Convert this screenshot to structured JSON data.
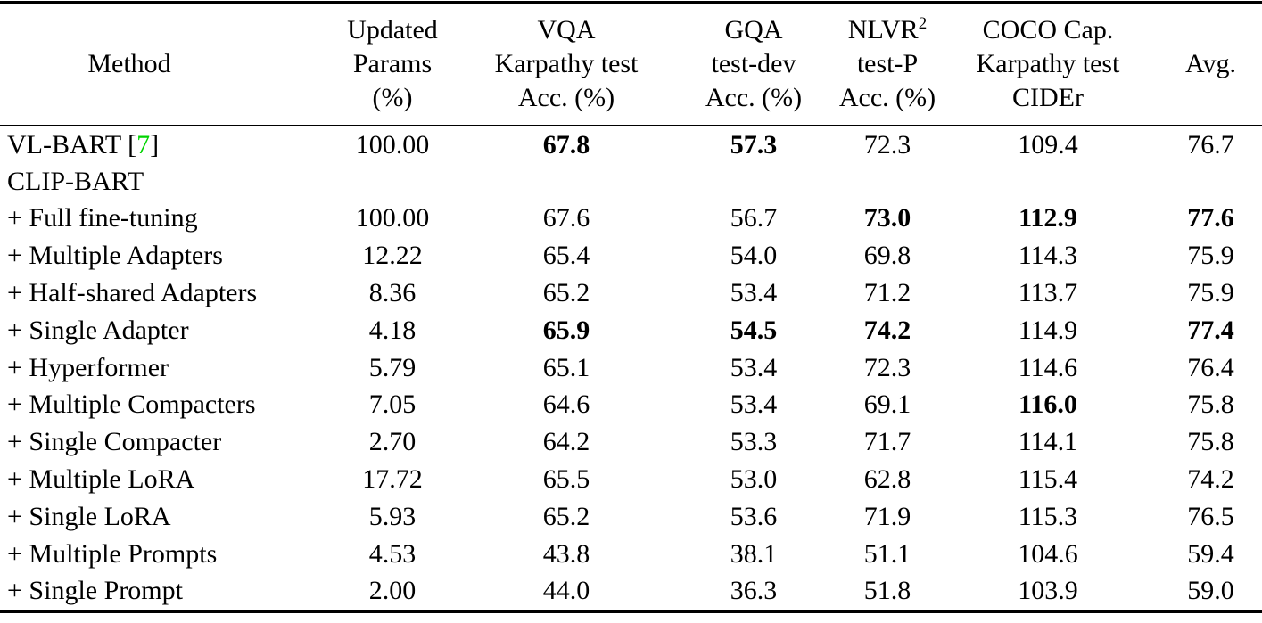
{
  "accent_colors": {
    "citation_green": "#00D400",
    "text": "#000000"
  },
  "table": {
    "columns": [
      {
        "id": "method",
        "header_lines": [
          "Method"
        ]
      },
      {
        "id": "updated-params",
        "header_lines": [
          "Updated",
          "Params",
          "(%)"
        ]
      },
      {
        "id": "vqa",
        "header_lines": [
          "VQA",
          "Karpathy test",
          "Acc. (%)"
        ]
      },
      {
        "id": "gqa",
        "header_lines": [
          "GQA",
          "test-dev",
          "Acc. (%)"
        ]
      },
      {
        "id": "nlvr2",
        "header_lines": [
          {
            "text": "NLVR",
            "sup": "2"
          },
          "test-P",
          "Acc. (%)"
        ]
      },
      {
        "id": "coco-cap",
        "header_lines": [
          "COCO Cap.",
          "Karpathy test",
          "CIDEr"
        ]
      },
      {
        "id": "avg",
        "header_lines": [
          "Avg."
        ]
      }
    ],
    "rows": [
      {
        "method": {
          "pre": "VL-BART [",
          "cite": "7",
          "post": "]"
        },
        "values": [
          "100.00",
          "67.8",
          "57.3",
          "72.3",
          "109.4",
          "76.7"
        ],
        "bold": [
          false,
          true,
          true,
          false,
          false,
          false
        ]
      },
      {
        "method": "CLIP-BART",
        "values": [
          "",
          "",
          "",
          "",
          "",
          ""
        ],
        "bold": [
          false,
          false,
          false,
          false,
          false,
          false
        ]
      },
      {
        "method": "+ Full fine-tuning",
        "values": [
          "100.00",
          "67.6",
          "56.7",
          "73.0",
          "112.9",
          "77.6"
        ],
        "bold": [
          false,
          false,
          false,
          true,
          true,
          true
        ]
      },
      {
        "method": "+ Multiple Adapters",
        "values": [
          "12.22",
          "65.4",
          "54.0",
          "69.8",
          "114.3",
          "75.9"
        ],
        "bold": [
          false,
          false,
          false,
          false,
          false,
          false
        ]
      },
      {
        "method": "+ Half-shared Adapters",
        "values": [
          "8.36",
          "65.2",
          "53.4",
          "71.2",
          "113.7",
          "75.9"
        ],
        "bold": [
          false,
          false,
          false,
          false,
          false,
          false
        ]
      },
      {
        "method": "+ Single Adapter",
        "values": [
          "4.18",
          "65.9",
          "54.5",
          "74.2",
          "114.9",
          "77.4"
        ],
        "bold": [
          false,
          true,
          true,
          true,
          false,
          true
        ]
      },
      {
        "method": "+ Hyperformer",
        "values": [
          "5.79",
          "65.1",
          "53.4",
          "72.3",
          "114.6",
          "76.4"
        ],
        "bold": [
          false,
          false,
          false,
          false,
          false,
          false
        ]
      },
      {
        "method": "+ Multiple Compacters",
        "values": [
          "7.05",
          "64.6",
          "53.4",
          "69.1",
          "116.0",
          "75.8"
        ],
        "bold": [
          false,
          false,
          false,
          false,
          true,
          false
        ]
      },
      {
        "method": "+ Single Compacter",
        "values": [
          "2.70",
          "64.2",
          "53.3",
          "71.7",
          "114.1",
          "75.8"
        ],
        "bold": [
          false,
          false,
          false,
          false,
          false,
          false
        ]
      },
      {
        "method": "+ Multiple LoRA",
        "values": [
          "17.72",
          "65.5",
          "53.0",
          "62.8",
          "115.4",
          "74.2"
        ],
        "bold": [
          false,
          false,
          false,
          false,
          false,
          false
        ]
      },
      {
        "method": "+ Single LoRA",
        "values": [
          "5.93",
          "65.2",
          "53.6",
          "71.9",
          "115.3",
          "76.5"
        ],
        "bold": [
          false,
          false,
          false,
          false,
          false,
          false
        ]
      },
      {
        "method": "+ Multiple Prompts",
        "values": [
          "4.53",
          "43.8",
          "38.1",
          "51.1",
          "104.6",
          "59.4"
        ],
        "bold": [
          false,
          false,
          false,
          false,
          false,
          false
        ]
      },
      {
        "method": "+ Single Prompt",
        "values": [
          "2.00",
          "44.0",
          "36.3",
          "51.8",
          "103.9",
          "59.0"
        ],
        "bold": [
          false,
          false,
          false,
          false,
          false,
          false
        ]
      }
    ]
  }
}
